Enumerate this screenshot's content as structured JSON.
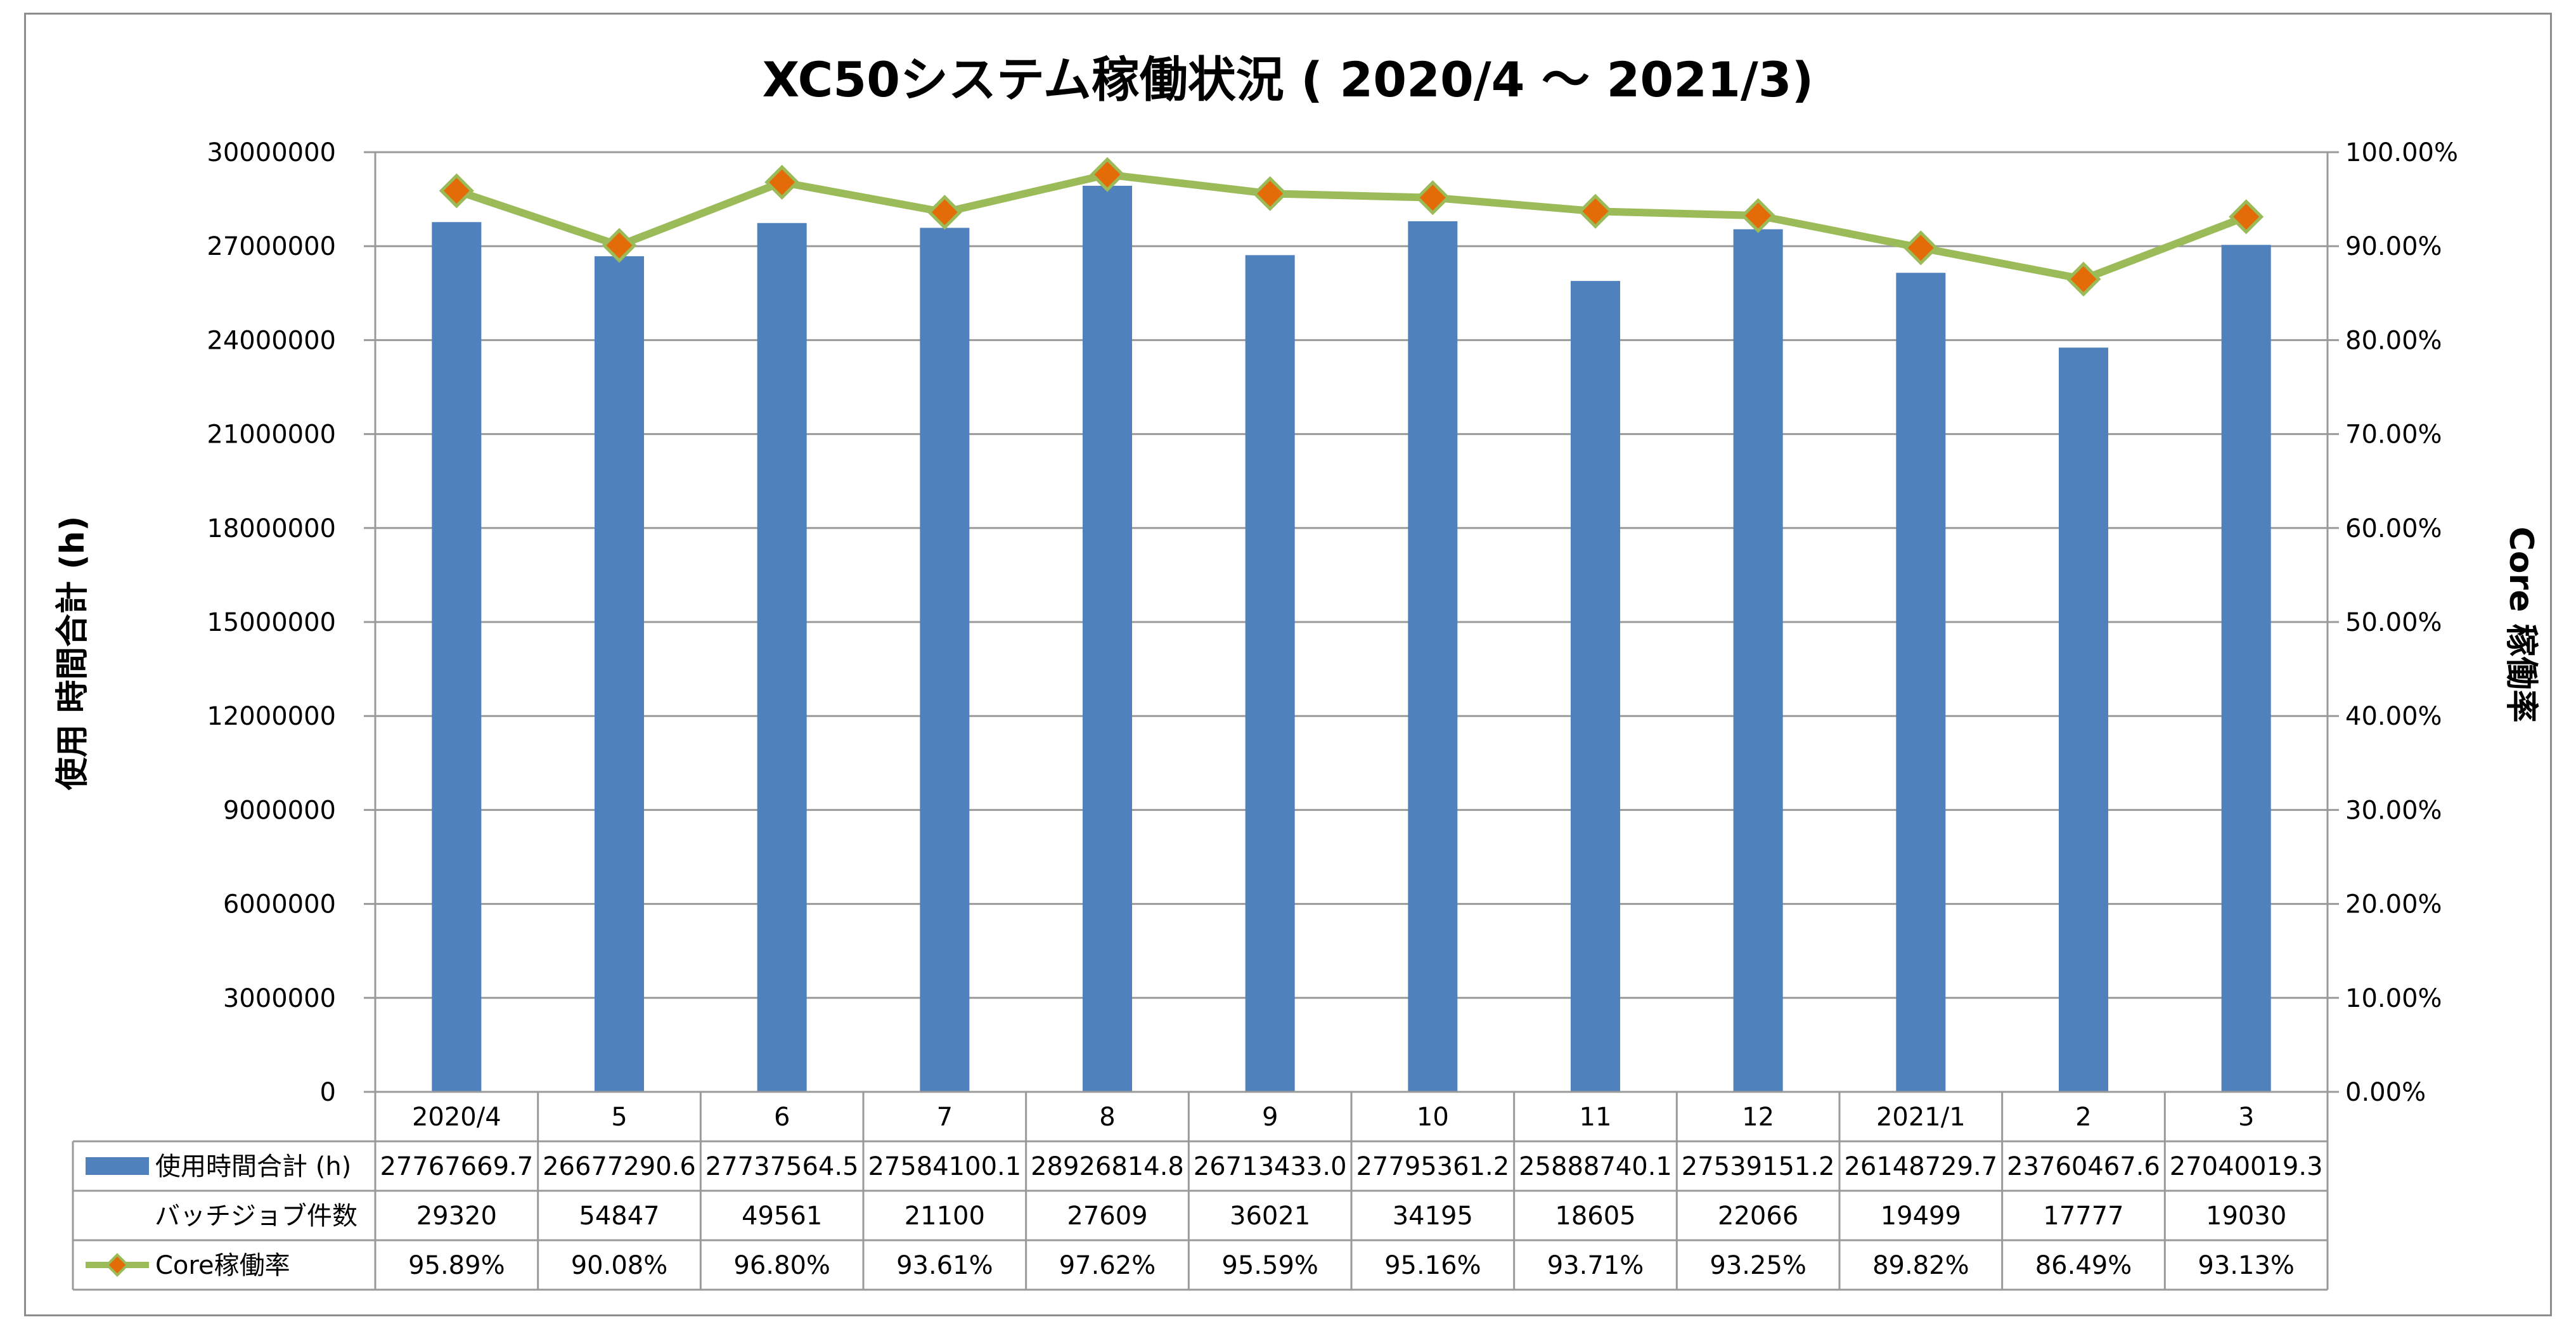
{
  "chart_data": {
    "type": "bar",
    "title": "XC50システム稼働状況 ( 2020/4 〜 2021/3)",
    "ylabel": "使用 時間合計 (h)",
    "y2label": "Core 稼働率",
    "ylim": [
      0,
      30000000
    ],
    "y2lim": [
      0,
      100
    ],
    "yticks": [
      "0",
      "3000000",
      "6000000",
      "9000000",
      "12000000",
      "15000000",
      "18000000",
      "21000000",
      "24000000",
      "27000000",
      "30000000"
    ],
    "y2ticks": [
      "0.00%",
      "10.00%",
      "20.00%",
      "30.00%",
      "40.00%",
      "50.00%",
      "60.00%",
      "70.00%",
      "80.00%",
      "90.00%",
      "100.00%"
    ],
    "grid": true,
    "legend": "data-table",
    "categories": [
      "2020/4",
      "5",
      "6",
      "7",
      "8",
      "9",
      "10",
      "11",
      "12",
      "2021/1",
      "2",
      "3"
    ],
    "series": [
      {
        "name": "使用時間合計 (h)",
        "type": "bar",
        "axis": "left",
        "color": "#4f81bd",
        "values": [
          27767669.7,
          26677290.6,
          27737564.5,
          27584100.1,
          28926814.8,
          26713433.0,
          27795361.2,
          25888740.1,
          27539151.2,
          26148729.7,
          23760467.6,
          27040019.3
        ],
        "labels": [
          "27767669.7",
          "26677290.6",
          "27737564.5",
          "27584100.1",
          "28926814.8",
          "26713433.0",
          "27795361.2",
          "25888740.1",
          "27539151.2",
          "26148729.7",
          "23760467.6",
          "27040019.3"
        ]
      },
      {
        "name": "バッチジョブ件数",
        "type": "table-only",
        "values": [
          29320,
          54847,
          49561,
          21100,
          27609,
          36021,
          34195,
          18605,
          22066,
          19499,
          17777,
          19030
        ],
        "labels": [
          "29320",
          "54847",
          "49561",
          "21100",
          "27609",
          "36021",
          "34195",
          "18605",
          "22066",
          "19499",
          "17777",
          "19030"
        ]
      },
      {
        "name": "Core稼働率",
        "type": "line",
        "axis": "right",
        "color": "#9bbb59",
        "marker_color": "#e36c09",
        "values": [
          95.89,
          90.08,
          96.8,
          93.61,
          97.62,
          95.59,
          95.16,
          93.71,
          93.25,
          89.82,
          86.49,
          93.13
        ],
        "labels": [
          "95.89%",
          "90.08%",
          "96.80%",
          "93.61%",
          "97.62%",
          "95.59%",
          "95.16%",
          "93.71%",
          "93.25%",
          "89.82%",
          "86.49%",
          "93.13%"
        ]
      }
    ]
  }
}
